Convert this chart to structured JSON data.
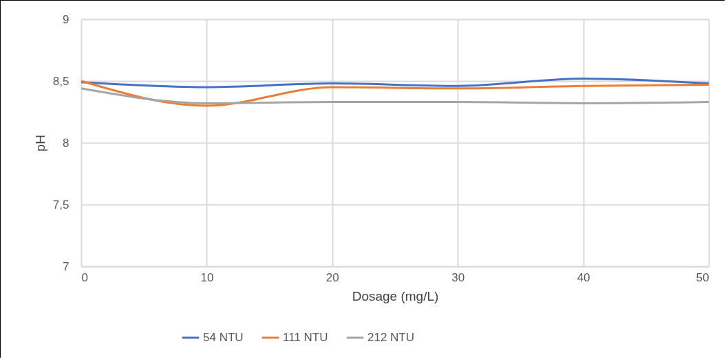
{
  "chart_data": {
    "type": "line",
    "xlabel": "Dosage (mg/L)",
    "ylabel": "pH",
    "x": [
      0,
      10,
      20,
      30,
      40,
      50
    ],
    "xlim": [
      0,
      50
    ],
    "xticks": [
      0,
      10,
      20,
      30,
      40,
      50
    ],
    "ylim": [
      7,
      9
    ],
    "yticks": [
      7,
      {
        "value": 7.5,
        "label": "7,5"
      },
      8,
      {
        "value": 8.5,
        "label": "8,5"
      },
      9
    ],
    "grid": true,
    "legend": "bottom",
    "marker": "none",
    "line_style": "solid",
    "series": [
      {
        "name": "54 NTU",
        "color": "#4472c4",
        "values": [
          8.49,
          8.45,
          8.48,
          8.46,
          8.52,
          8.48
        ]
      },
      {
        "name": "111 NTU",
        "color": "#ed7d31",
        "values": [
          8.5,
          8.3,
          8.45,
          8.44,
          8.46,
          8.47
        ]
      },
      {
        "name": "212 NTU",
        "color": "#a5a5a5",
        "values": [
          8.44,
          8.32,
          8.33,
          8.33,
          8.32,
          8.33
        ]
      }
    ]
  }
}
